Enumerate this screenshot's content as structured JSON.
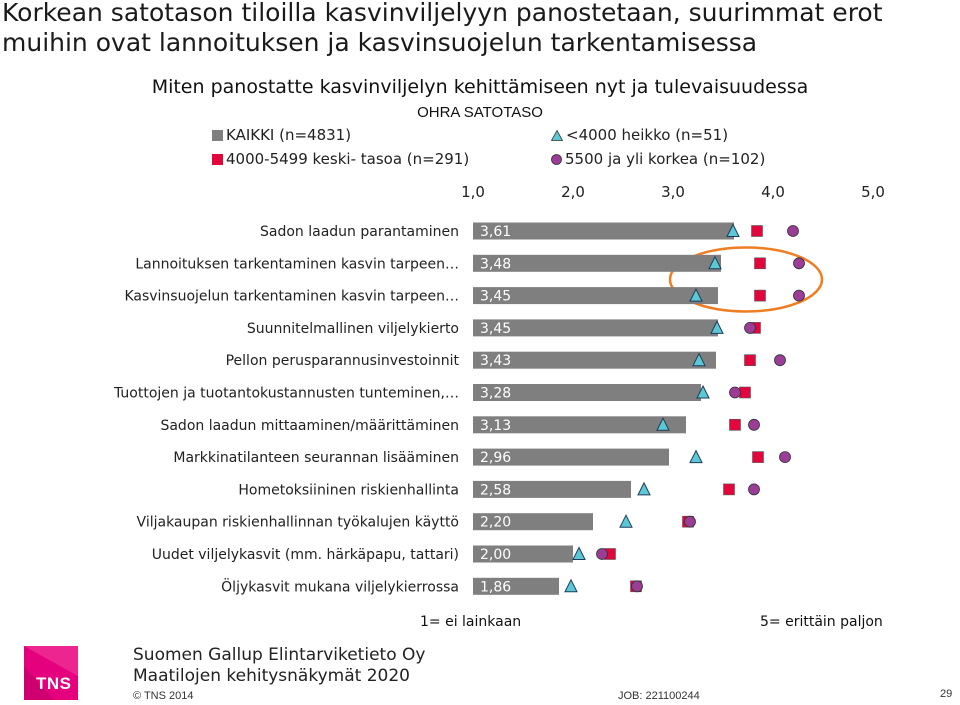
{
  "slide": {
    "title_line1": "Korkean satotason tiloilla kasvinviljelyyn panostetaan, suurimmat erot",
    "title_line2": "muihin ovat lannoituksen ja kasvinsuojelun tarkentamisessa"
  },
  "chart_data": {
    "type": "bar",
    "title": "Miten panostatte kasvinviljelyn kehittämiseen nyt ja tulevaisuudessa",
    "subtitle": "OHRA SATOTASO",
    "xlim": [
      1.0,
      5.0
    ],
    "x_ticks": [
      "1,0",
      "2,0",
      "3,0",
      "4,0",
      "5,0"
    ],
    "categories": [
      "Sadon laadun parantaminen",
      "Lannoituksen tarkentaminen kasvin tarpeen…",
      "Kasvinsuojelun tarkentaminen kasvin tarpeen…",
      "Suunnitelmallinen viljelykierto",
      "Pellon perusparannusinvestoinnit",
      "Tuottojen ja tuotantokustannusten tunteminen,…",
      "Sadon laadun mittaaminen/määrittäminen",
      "Markkinatilanteen seurannan lisääminen",
      "Hometoksiininen riskienhallinta",
      "Viljakaupan riskienhallinnan työkalujen käyttö",
      "Uudet viljelykasvit (mm. härkäpapu, tattari)",
      "Öljykasvit mukana viljelykierrossa"
    ],
    "series": [
      {
        "name": "KAIKKI (n=4831)",
        "marker": "bar",
        "color": "#7f7f7f",
        "values": [
          3.61,
          3.48,
          3.45,
          3.45,
          3.43,
          3.28,
          3.13,
          2.96,
          2.58,
          2.2,
          2.0,
          1.86
        ],
        "labels": [
          "3,61",
          "3,48",
          "3,45",
          "3,45",
          "3,43",
          "3,28",
          "3,13",
          "2,96",
          "2,58",
          "2,20",
          "2,00",
          "1,86"
        ]
      },
      {
        "name": "<4000 heikko (n=51)",
        "marker": "triangle",
        "color": "#5bc8d6",
        "values": [
          3.6,
          3.42,
          3.23,
          3.44,
          3.26,
          3.3,
          2.9,
          3.23,
          2.71,
          2.53,
          2.06,
          1.98
        ]
      },
      {
        "name": "4000-5499 keski- tasoa (n=291)",
        "marker": "square",
        "color": "#e3063d",
        "values": [
          3.84,
          3.87,
          3.87,
          3.82,
          3.77,
          3.72,
          3.62,
          3.85,
          3.56,
          3.15,
          2.37,
          2.63
        ]
      },
      {
        "name": "5500 ja yli korkea (n=102)",
        "marker": "circle",
        "color": "#9b3c96",
        "values": [
          4.2,
          4.26,
          4.26,
          3.77,
          4.07,
          3.62,
          3.81,
          4.12,
          3.81,
          3.17,
          2.29,
          2.64
        ]
      }
    ],
    "axis_note_left": "1= ei lainkaan",
    "axis_note_right": "5= erittäin paljon",
    "highlight_rows": [
      1,
      2
    ],
    "grid": false
  },
  "footer": {
    "company": "Suomen Gallup Elintarviketieto Oy",
    "study": "Maatilojen kehitysnäkymät 2020",
    "copyright": "© TNS 2014",
    "job": "JOB: 221100244",
    "page": "29",
    "logo": "TNS"
  }
}
